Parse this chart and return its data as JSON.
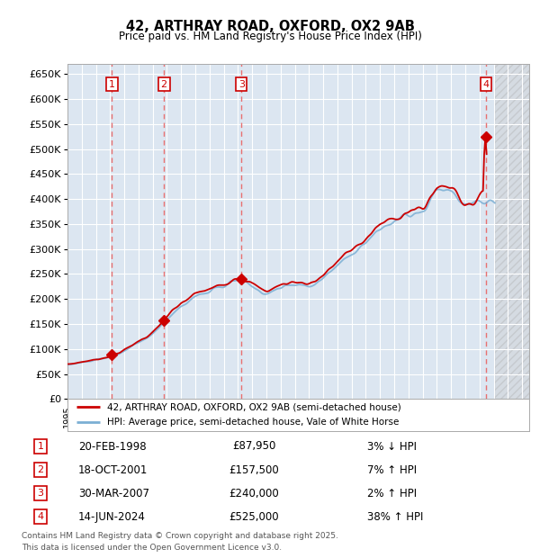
{
  "title": "42, ARTHRAY ROAD, OXFORD, OX2 9AB",
  "subtitle": "Price paid vs. HM Land Registry's House Price Index (HPI)",
  "xlim_start": 1995.0,
  "xlim_end": 2027.5,
  "ylim": [
    0,
    670000
  ],
  "yticks": [
    0,
    50000,
    100000,
    150000,
    200000,
    250000,
    300000,
    350000,
    400000,
    450000,
    500000,
    550000,
    600000,
    650000
  ],
  "ytick_labels": [
    "£0",
    "£50K",
    "£100K",
    "£150K",
    "£200K",
    "£250K",
    "£300K",
    "£350K",
    "£400K",
    "£450K",
    "£500K",
    "£550K",
    "£600K",
    "£650K"
  ],
  "background_color": "#ffffff",
  "plot_bg_color": "#dce6f1",
  "grid_color": "#ffffff",
  "hpi_color": "#7bafd4",
  "price_color": "#cc0000",
  "vline_color": "#e87070",
  "current_year": 2025.1,
  "sales": [
    {
      "num": 1,
      "date_str": "20-FEB-1998",
      "year": 1998.12,
      "price": 87950,
      "pct": "3%",
      "dir": "↓"
    },
    {
      "num": 2,
      "date_str": "18-OCT-2001",
      "year": 2001.79,
      "price": 157500,
      "pct": "7%",
      "dir": "↑"
    },
    {
      "num": 3,
      "date_str": "30-MAR-2007",
      "year": 2007.24,
      "price": 240000,
      "pct": "2%",
      "dir": "↑"
    },
    {
      "num": 4,
      "date_str": "14-JUN-2024",
      "year": 2024.45,
      "price": 525000,
      "pct": "38%",
      "dir": "↑"
    }
  ],
  "legend_line1": "42, ARTHRAY ROAD, OXFORD, OX2 9AB (semi-detached house)",
  "legend_line2": "HPI: Average price, semi-detached house, Vale of White Horse",
  "footnote": "Contains HM Land Registry data © Crown copyright and database right 2025.\nThis data is licensed under the Open Government Licence v3.0."
}
